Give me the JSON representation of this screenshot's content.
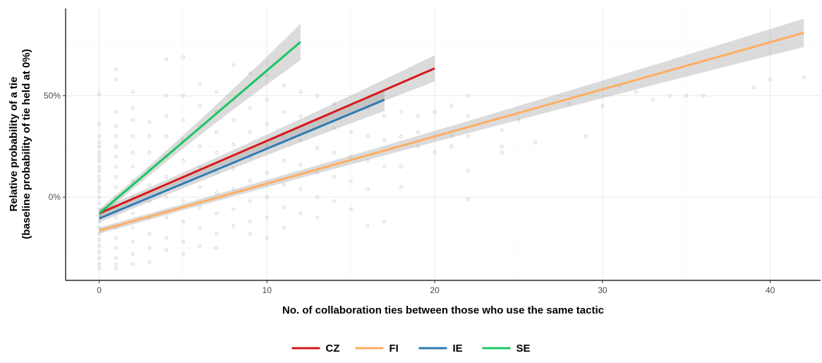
{
  "chart_data": {
    "type": "scatter",
    "title": "",
    "xlabel": "No. of collaboration ties between those who use the same tactic",
    "ylabel_line1": "Relative probability of a tie",
    "ylabel_line2": "(baseline probability of tie held at 0%)",
    "xlim": [
      -2,
      43
    ],
    "ylim": [
      -0.41,
      0.93
    ],
    "x_ticks": [
      0,
      10,
      20,
      30,
      40
    ],
    "x_tick_labels": [
      "0",
      "10",
      "20",
      "30",
      "40"
    ],
    "y_ticks": [
      0,
      0.5
    ],
    "y_tick_labels": [
      "0%",
      "50%"
    ],
    "grid": true,
    "legend_position": "bottom",
    "series": [
      {
        "name": "CZ",
        "color": "#d7191c",
        "type": "line",
        "x": [
          0,
          20
        ],
        "y": [
          -0.08,
          0.635
        ],
        "ci_width": [
          0.02,
          0.065
        ]
      },
      {
        "name": "FI",
        "color": "#fdae61",
        "type": "line",
        "x": [
          0,
          42
        ],
        "y": [
          -0.165,
          0.81
        ],
        "ci_width": [
          0.015,
          0.07
        ]
      },
      {
        "name": "IE",
        "color": "#2c7bb6",
        "type": "line",
        "x": [
          0,
          17
        ],
        "y": [
          -0.105,
          0.48
        ],
        "ci_width": [
          0.02,
          0.055
        ]
      },
      {
        "name": "SE",
        "color": "#1cc561",
        "type": "line",
        "x": [
          0,
          12
        ],
        "y": [
          -0.08,
          0.765
        ],
        "ci_width": [
          0.02,
          0.09
        ]
      }
    ],
    "points": {
      "color": "#bdbdbd",
      "data": [
        [
          0,
          0.51
        ],
        [
          0,
          0.36
        ],
        [
          0,
          0.3
        ],
        [
          0,
          0.27
        ],
        [
          0,
          0.25
        ],
        [
          0,
          0.22
        ],
        [
          0,
          0.2
        ],
        [
          0,
          0.18
        ],
        [
          0,
          0.15
        ],
        [
          0,
          0.13
        ],
        [
          0,
          0.1
        ],
        [
          0,
          0.08
        ],
        [
          0,
          0.05
        ],
        [
          0,
          0.03
        ],
        [
          0,
          0.0
        ],
        [
          0,
          -0.03
        ],
        [
          0,
          -0.06
        ],
        [
          0,
          -0.09
        ],
        [
          0,
          -0.12
        ],
        [
          0,
          -0.15
        ],
        [
          0,
          -0.18
        ],
        [
          0,
          -0.21
        ],
        [
          0,
          -0.24
        ],
        [
          0,
          -0.27
        ],
        [
          0,
          -0.3
        ],
        [
          0,
          -0.33
        ],
        [
          0,
          -0.35
        ],
        [
          1,
          0.63
        ],
        [
          1,
          0.58
        ],
        [
          1,
          0.42
        ],
        [
          1,
          0.35
        ],
        [
          1,
          0.3
        ],
        [
          1,
          0.25
        ],
        [
          1,
          0.2
        ],
        [
          1,
          0.15
        ],
        [
          1,
          0.1
        ],
        [
          1,
          0.05
        ],
        [
          1,
          0.0
        ],
        [
          1,
          -0.05
        ],
        [
          1,
          -0.1
        ],
        [
          1,
          -0.15
        ],
        [
          1,
          -0.2
        ],
        [
          1,
          -0.25
        ],
        [
          1,
          -0.3
        ],
        [
          1,
          -0.33
        ],
        [
          1,
          -0.35
        ],
        [
          2,
          0.52
        ],
        [
          2,
          0.44
        ],
        [
          2,
          0.38
        ],
        [
          2,
          0.3
        ],
        [
          2,
          0.22
        ],
        [
          2,
          0.15
        ],
        [
          2,
          0.08
        ],
        [
          2,
          0.0
        ],
        [
          2,
          -0.08
        ],
        [
          2,
          -0.15
        ],
        [
          2,
          -0.22
        ],
        [
          2,
          -0.28
        ],
        [
          2,
          -0.33
        ],
        [
          3,
          0.37
        ],
        [
          3,
          0.3
        ],
        [
          3,
          0.22
        ],
        [
          3,
          0.14
        ],
        [
          3,
          0.06
        ],
        [
          3,
          -0.02
        ],
        [
          3,
          -0.1
        ],
        [
          3,
          -0.18
        ],
        [
          3,
          -0.25
        ],
        [
          3,
          -0.32
        ],
        [
          4,
          0.68
        ],
        [
          4,
          0.5
        ],
        [
          4,
          0.4
        ],
        [
          4,
          0.3
        ],
        [
          4,
          0.2
        ],
        [
          4,
          0.1
        ],
        [
          4,
          0.0
        ],
        [
          4,
          -0.1
        ],
        [
          4,
          -0.2
        ],
        [
          4,
          -0.26
        ],
        [
          5,
          0.69
        ],
        [
          5,
          0.5
        ],
        [
          5,
          0.38
        ],
        [
          5,
          0.28
        ],
        [
          5,
          0.18
        ],
        [
          5,
          0.08
        ],
        [
          5,
          -0.02
        ],
        [
          5,
          -0.12
        ],
        [
          5,
          -0.22
        ],
        [
          5,
          -0.28
        ],
        [
          6,
          0.56
        ],
        [
          6,
          0.45
        ],
        [
          6,
          0.35
        ],
        [
          6,
          0.25
        ],
        [
          6,
          0.15
        ],
        [
          6,
          0.05
        ],
        [
          6,
          -0.05
        ],
        [
          6,
          -0.15
        ],
        [
          6,
          -0.24
        ],
        [
          7,
          0.52
        ],
        [
          7,
          0.42
        ],
        [
          7,
          0.32
        ],
        [
          7,
          0.22
        ],
        [
          7,
          0.12
        ],
        [
          7,
          0.02
        ],
        [
          7,
          -0.08
        ],
        [
          7,
          -0.18
        ],
        [
          7,
          -0.25
        ],
        [
          8,
          0.65
        ],
        [
          8,
          0.48
        ],
        [
          8,
          0.38
        ],
        [
          8,
          0.26
        ],
        [
          8,
          0.14
        ],
        [
          8,
          0.04
        ],
        [
          8,
          -0.06
        ],
        [
          8,
          -0.14
        ],
        [
          9,
          0.61
        ],
        [
          9,
          0.44
        ],
        [
          9,
          0.32
        ],
        [
          9,
          0.2
        ],
        [
          9,
          0.08
        ],
        [
          9,
          -0.02
        ],
        [
          9,
          -0.12
        ],
        [
          9,
          -0.18
        ],
        [
          10,
          0.6
        ],
        [
          10,
          0.48
        ],
        [
          10,
          0.36
        ],
        [
          10,
          0.25
        ],
        [
          10,
          0.12
        ],
        [
          10,
          0.0
        ],
        [
          10,
          -0.1
        ],
        [
          10,
          -0.2
        ],
        [
          11,
          0.55
        ],
        [
          11,
          0.42
        ],
        [
          11,
          0.3
        ],
        [
          11,
          0.18
        ],
        [
          11,
          0.06
        ],
        [
          11,
          -0.05
        ],
        [
          11,
          -0.15
        ],
        [
          12,
          0.52
        ],
        [
          12,
          0.4
        ],
        [
          12,
          0.28
        ],
        [
          12,
          0.16
        ],
        [
          12,
          0.04
        ],
        [
          12,
          -0.08
        ],
        [
          13,
          0.5
        ],
        [
          13,
          0.38
        ],
        [
          13,
          0.24
        ],
        [
          13,
          0.12
        ],
        [
          13,
          0.0
        ],
        [
          13,
          -0.1
        ],
        [
          14,
          0.46
        ],
        [
          14,
          0.34
        ],
        [
          14,
          0.22
        ],
        [
          14,
          0.1
        ],
        [
          14,
          -0.02
        ],
        [
          15,
          0.45
        ],
        [
          15,
          0.32
        ],
        [
          15,
          0.2
        ],
        [
          15,
          0.08
        ],
        [
          15,
          -0.06
        ],
        [
          16,
          0.44
        ],
        [
          16,
          0.3
        ],
        [
          16,
          0.18
        ],
        [
          16,
          0.04
        ],
        [
          16,
          -0.14
        ],
        [
          17,
          0.4
        ],
        [
          17,
          0.28
        ],
        [
          17,
          0.15
        ],
        [
          17,
          -0.12
        ],
        [
          18,
          0.42
        ],
        [
          18,
          0.3
        ],
        [
          18,
          0.15
        ],
        [
          18,
          0.05
        ],
        [
          19,
          0.4
        ],
        [
          19,
          0.32
        ],
        [
          19,
          0.25
        ],
        [
          20,
          0.42
        ],
        [
          20,
          0.3
        ],
        [
          20,
          0.22
        ],
        [
          21,
          0.45
        ],
        [
          21,
          0.3
        ],
        [
          21,
          0.25
        ],
        [
          22,
          0.5
        ],
        [
          22,
          0.4
        ],
        [
          22,
          0.3
        ],
        [
          22,
          0.13
        ],
        [
          22,
          -0.01
        ],
        [
          24,
          0.33
        ],
        [
          24,
          0.25
        ],
        [
          24,
          0.22
        ],
        [
          25,
          0.38
        ],
        [
          26,
          0.27
        ],
        [
          28,
          0.46
        ],
        [
          29,
          0.3
        ],
        [
          30,
          0.45
        ],
        [
          31,
          0.55
        ],
        [
          32,
          0.52
        ],
        [
          33,
          0.48
        ],
        [
          34,
          0.5
        ],
        [
          35,
          0.5
        ],
        [
          36,
          0.5
        ],
        [
          39,
          0.54
        ],
        [
          40,
          0.58
        ],
        [
          42,
          0.59
        ]
      ]
    }
  }
}
